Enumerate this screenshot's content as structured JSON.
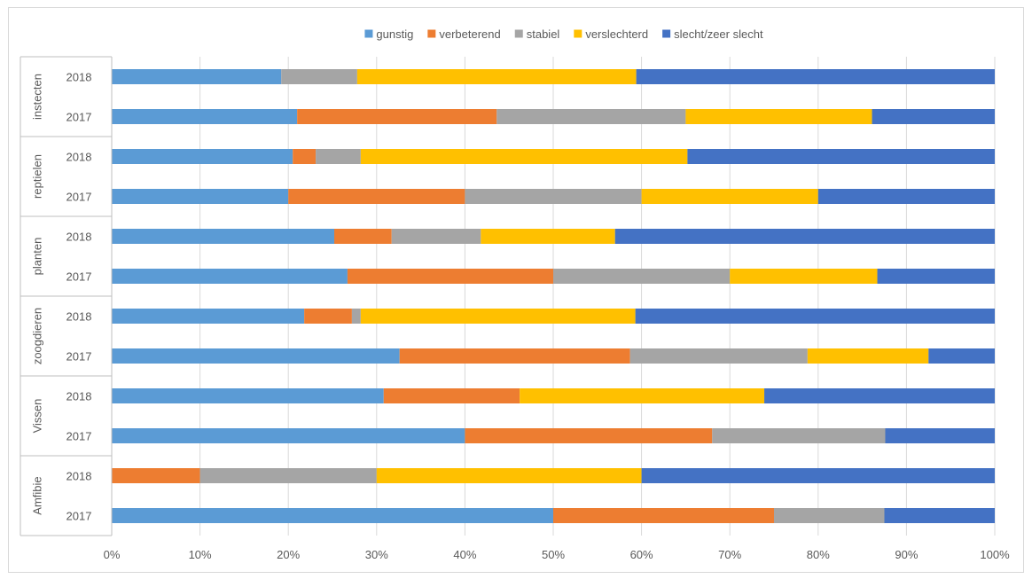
{
  "chart_data": {
    "type": "bar",
    "orientation": "horizontal",
    "stacked": "100%",
    "legend_position": "top",
    "grid": true,
    "xlim": [
      0,
      100
    ],
    "x_ticks": [
      "0%",
      "10%",
      "20%",
      "30%",
      "40%",
      "50%",
      "60%",
      "70%",
      "80%",
      "90%",
      "100%"
    ],
    "colors": {
      "gunstig": "#5b9bd5",
      "verbeterend": "#ed7d31",
      "stabiel": "#a5a5a5",
      "verslechterd": "#ffc000",
      "slecht/zeer slecht": "#4472c4"
    },
    "groups": [
      {
        "name": "instecten",
        "categories": [
          "2018",
          "2017"
        ]
      },
      {
        "name": "reptielen",
        "categories": [
          "2018",
          "2017"
        ]
      },
      {
        "name": "planten",
        "categories": [
          "2018",
          "2017"
        ]
      },
      {
        "name": "zoogdieren",
        "categories": [
          "2018",
          "2017"
        ]
      },
      {
        "name": "Vissen",
        "categories": [
          "2018",
          "2017"
        ]
      },
      {
        "name": "Amfibie",
        "categories": [
          "2018",
          "2017"
        ]
      }
    ],
    "categories": [
      "instecten 2018",
      "instecten 2017",
      "reptielen 2018",
      "reptielen 2017",
      "planten 2018",
      "planten 2017",
      "zoogdieren 2018",
      "zoogdieren 2017",
      "Vissen 2018",
      "Vissen 2017",
      "Amfibie 2018",
      "Amfibie 2017"
    ],
    "series": [
      {
        "name": "gunstig",
        "values": [
          19.2,
          21.0,
          20.5,
          20.0,
          25.2,
          26.7,
          21.8,
          32.6,
          30.8,
          40.0,
          0.0,
          50.0
        ]
      },
      {
        "name": "verbeterend",
        "values": [
          0.0,
          22.6,
          2.6,
          20.0,
          6.5,
          23.3,
          5.4,
          26.1,
          15.4,
          28.0,
          10.0,
          25.0
        ]
      },
      {
        "name": "stabiel",
        "values": [
          8.6,
          21.4,
          5.1,
          20.0,
          10.1,
          20.0,
          1.0,
          20.1,
          0.0,
          19.6,
          20.0,
          12.5
        ]
      },
      {
        "name": "verslechterd",
        "values": [
          31.6,
          21.1,
          37.0,
          20.0,
          15.2,
          16.7,
          31.1,
          13.7,
          27.7,
          0.0,
          30.0,
          0.0
        ]
      },
      {
        "name": "slecht/zeer slecht",
        "values": [
          40.6,
          13.9,
          34.8,
          20.0,
          43.0,
          13.3,
          40.7,
          7.5,
          26.1,
          12.4,
          40.0,
          12.5
        ]
      }
    ]
  }
}
